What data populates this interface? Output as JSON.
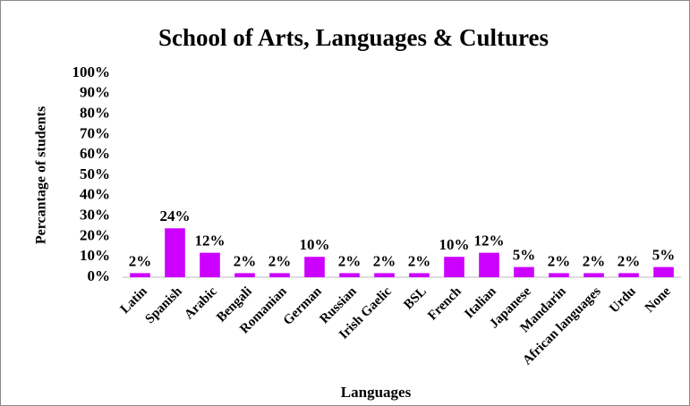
{
  "chart_data": {
    "type": "bar",
    "title": "School of Arts,  Languages & Cultures",
    "x_label": "Languages",
    "y_label": "Percantage of students",
    "categories": [
      "Latin",
      "Spanish",
      "Arabic",
      "Bengali",
      "Romanian",
      "German",
      "Russian",
      "Irish Gaelic",
      "BSL",
      "French",
      "Italian",
      "Japanese",
      "Mandarin",
      "African languages",
      "Urdu",
      "None"
    ],
    "values": [
      2,
      24,
      12,
      2,
      2,
      10,
      2,
      2,
      2,
      10,
      12,
      5,
      2,
      2,
      2,
      5
    ],
    "value_labels": [
      "2%",
      "24%",
      "12%",
      "2%",
      "2%",
      "10%",
      "2%",
      "2%",
      "2%",
      "10%",
      "12%",
      "5%",
      "2%",
      "2%",
      "2%",
      "5%"
    ],
    "color": "#cc00ff",
    "ylim": [
      0,
      100
    ],
    "yticks": [
      {
        "value": 0,
        "label": "0%"
      },
      {
        "value": 10,
        "label": "10%"
      },
      {
        "value": 20,
        "label": "20%"
      },
      {
        "value": 30,
        "label": "30%"
      },
      {
        "value": 40,
        "label": "40%"
      },
      {
        "value": 50,
        "label": "50%"
      },
      {
        "value": 60,
        "label": "60%"
      },
      {
        "value": 70,
        "label": "70%"
      },
      {
        "value": 80,
        "label": "80%"
      },
      {
        "value": 90,
        "label": "90%"
      },
      {
        "value": 100,
        "label": "100%"
      }
    ],
    "grid": false
  }
}
